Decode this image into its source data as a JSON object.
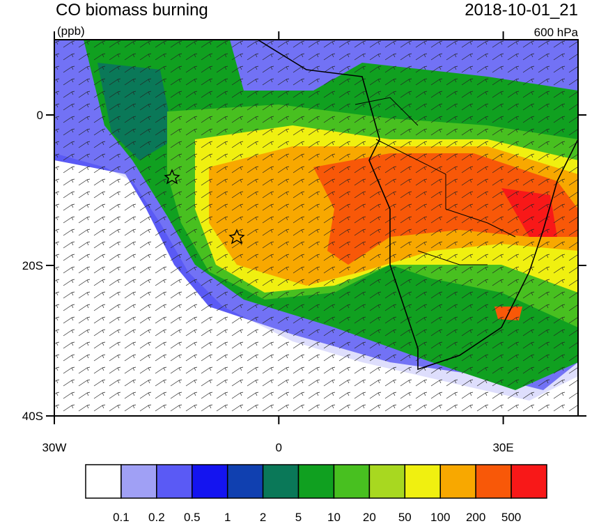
{
  "title": "CO biomass burning",
  "units": "(ppb)",
  "datetime": "2018-10-01_21",
  "level": "600 hPa",
  "map": {
    "xlim": [
      -30,
      40
    ],
    "ylim": [
      -40,
      10
    ],
    "xticks": [
      {
        "value": -30,
        "label": "30W"
      },
      0,
      {
        "value": 30,
        "label": "30E"
      }
    ],
    "yticks": [
      0,
      {
        "value": -20,
        "label": "20S"
      },
      {
        "value": -40,
        "label": "40S"
      }
    ]
  },
  "colorbar": {
    "levels": [
      0.1,
      0.2,
      0.5,
      1,
      2,
      5,
      10,
      20,
      50,
      100,
      200,
      500
    ],
    "colors": [
      "#ffffff",
      "#a0a0f5",
      "#5a5af5",
      "#1414f0",
      "#1040b0",
      "#0a7858",
      "#10a020",
      "#48c020",
      "#a8d820",
      "#f0f010",
      "#f8a800",
      "#f85808",
      "#f81818"
    ]
  }
}
